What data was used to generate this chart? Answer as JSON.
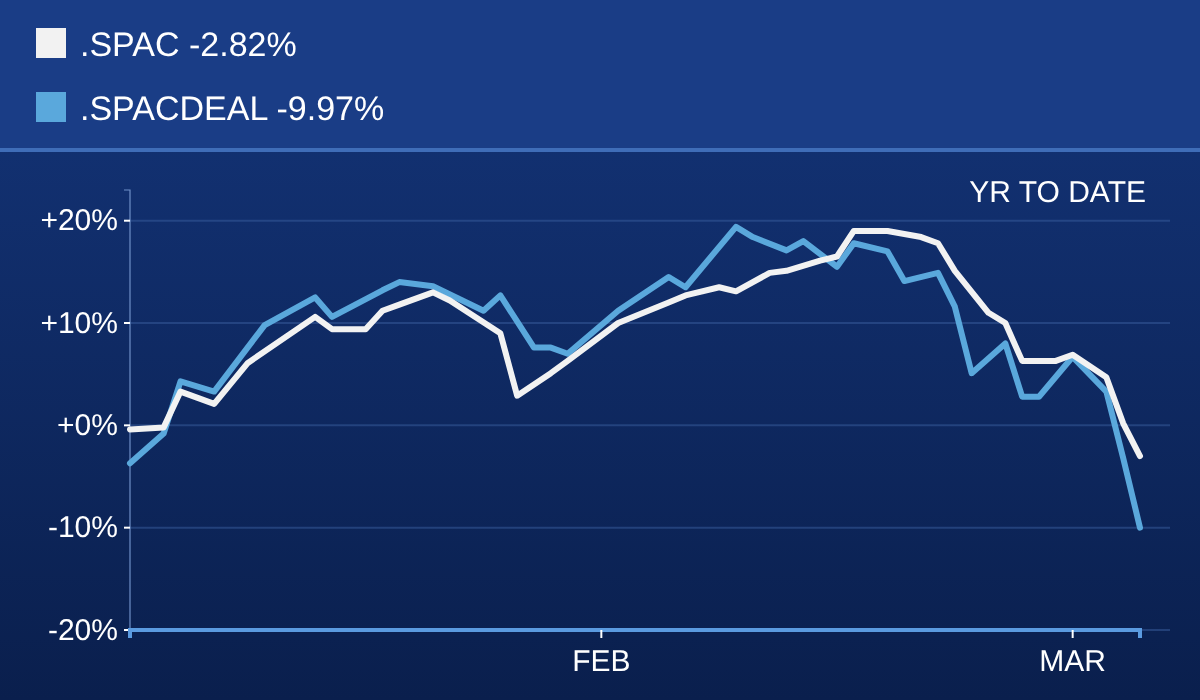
{
  "chart_data": {
    "type": "line",
    "subtitle": "YR TO DATE",
    "xlim": [
      "--01-04",
      "--03-05"
    ],
    "xticks": [
      {
        "value": "--02-01",
        "label": "FEB"
      },
      {
        "value": "--03-01",
        "label": "MAR"
      }
    ],
    "ylim": [
      -20,
      23
    ],
    "yticks": [
      {
        "value": -20,
        "label": "-20%"
      },
      {
        "value": -10,
        "label": "-10%"
      },
      {
        "value": 0,
        "label": "+0%"
      },
      {
        "value": 10,
        "label": "+10%"
      },
      {
        "value": 20,
        "label": "+20%"
      }
    ],
    "grid": "y",
    "legend": "top left",
    "line_style": "solid",
    "series": [
      {
        "name": ".SPAC -2.82%",
        "color": "#f2f2f2",
        "x": [
          "--01-04",
          "--01-06",
          "--01-07",
          "--01-09",
          "--01-11",
          "--01-15",
          "--01-16",
          "--01-18",
          "--01-19",
          "--01-20",
          "--01-22",
          "--01-23",
          "--01-26",
          "--01-27",
          "--01-29",
          "--01-30",
          "--02-02",
          "--02-05",
          "--02-06",
          "--02-08",
          "--02-09",
          "--02-11",
          "--02-12",
          "--02-14",
          "--02-15",
          "--02-16",
          "--02-18",
          "--02-20",
          "--02-21",
          "--02-22",
          "--02-24",
          "--02-25",
          "--02-26",
          "--02-28",
          "--03-01",
          "--03-03",
          "--03-04",
          "--03-05"
        ],
        "values": [
          -0.4,
          -0.2,
          3.3,
          2.1,
          6.1,
          10.6,
          9.4,
          9.4,
          11.2,
          11.8,
          13,
          12.2,
          9,
          2.9,
          5.1,
          6.3,
          10,
          12,
          12.7,
          13.5,
          13.1,
          14.9,
          15.1,
          16.1,
          16.5,
          19,
          19,
          18.4,
          17.8,
          15.1,
          11,
          10,
          6.3,
          6.3,
          6.9,
          4.7,
          0.2,
          -3
        ]
      },
      {
        "name": ".SPACDEAL -9.97%",
        "color": "#5aa8dc",
        "x": [
          "--01-04",
          "--01-06",
          "--01-07",
          "--01-09",
          "--01-12",
          "--01-15",
          "--01-16",
          "--01-19",
          "--01-20",
          "--01-22",
          "--01-25",
          "--01-26",
          "--01-28",
          "--01-29",
          "--01-30",
          "--02-02",
          "--02-05",
          "--02-06",
          "--02-09",
          "--02-10",
          "--02-12",
          "--02-13",
          "--02-15",
          "--02-16",
          "--02-18",
          "--02-19",
          "--02-21",
          "--02-22",
          "--02-23",
          "--02-25",
          "--02-26",
          "--02-27",
          "--03-01",
          "--03-03",
          "--03-04",
          "--03-05"
        ],
        "values": [
          -3.7,
          -0.8,
          4.3,
          3.3,
          9.8,
          12.5,
          10.6,
          13.2,
          14,
          13.6,
          11.2,
          12.7,
          7.6,
          7.6,
          7,
          11.2,
          14.5,
          13.5,
          19.4,
          18.4,
          17.1,
          18,
          15.5,
          17.8,
          17,
          14.1,
          14.9,
          11.6,
          5.1,
          8,
          2.8,
          2.8,
          6.7,
          3.3,
          -3.2,
          -10
        ]
      }
    ]
  }
}
